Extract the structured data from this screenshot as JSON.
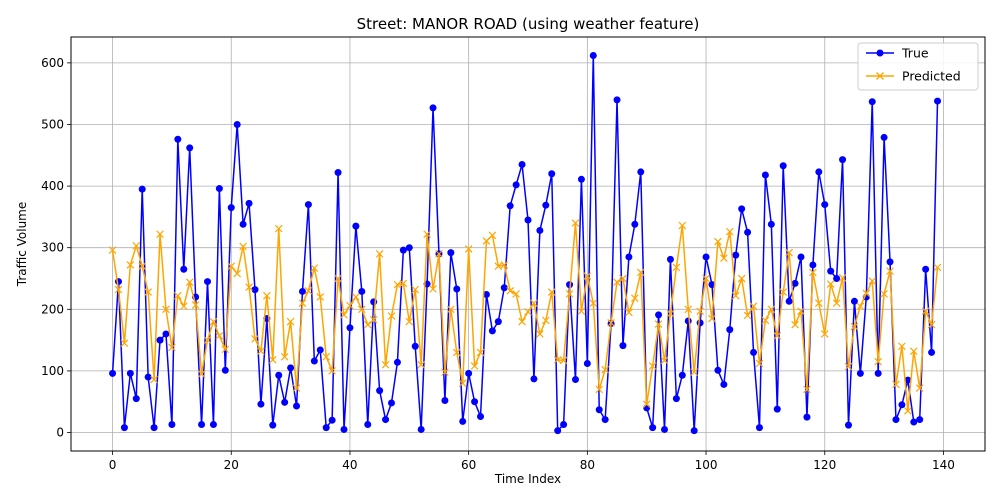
{
  "chart_data": {
    "type": "line",
    "title": "Street: MANOR ROAD (using weather feature)",
    "xlabel": "Time Index",
    "ylabel": "Traffic Volume",
    "xlim": [
      -7,
      147
    ],
    "ylim": [
      -30,
      642
    ],
    "xticks": [
      0,
      20,
      40,
      60,
      80,
      100,
      120,
      140
    ],
    "yticks": [
      0,
      100,
      200,
      300,
      400,
      500,
      600
    ],
    "grid": true,
    "legend_position": "upper right",
    "series": [
      {
        "name": "True",
        "color": "#0000ff",
        "marker": "circle",
        "values": [
          96,
          245,
          8,
          96,
          55,
          395,
          90,
          8,
          150,
          160,
          13,
          476,
          265,
          462,
          220,
          13,
          245,
          13,
          396,
          101,
          365,
          500,
          338,
          372,
          232,
          46,
          185,
          12,
          93,
          49,
          105,
          43,
          229,
          370,
          116,
          134,
          8,
          20,
          422,
          5,
          170,
          335,
          229,
          13,
          212,
          68,
          21,
          48,
          114,
          296,
          300,
          140,
          5,
          241,
          527,
          290,
          52,
          292,
          233,
          18,
          96,
          50,
          26,
          224,
          165,
          180,
          235,
          368,
          402,
          435,
          345,
          87,
          328,
          369,
          420,
          3,
          13,
          240,
          86,
          411,
          112,
          612,
          37,
          21,
          177,
          540,
          141,
          285,
          338,
          423,
          40,
          8,
          191,
          5,
          281,
          55,
          93,
          181,
          3,
          178,
          285,
          240,
          101,
          78,
          167,
          288,
          363,
          325,
          130,
          8,
          418,
          338,
          38,
          433,
          213,
          242,
          285,
          25,
          272,
          423,
          370,
          262,
          250,
          443,
          12,
          213,
          96,
          220,
          537,
          96,
          479,
          277,
          21,
          45,
          85,
          17,
          21,
          265,
          130,
          538
        ]
      },
      {
        "name": "Predicted",
        "color": "#ffa500",
        "marker": "x",
        "values": [
          296,
          232,
          145,
          272,
          303,
          270,
          228,
          86,
          322,
          200,
          138,
          222,
          205,
          244,
          207,
          95,
          150,
          180,
          157,
          135,
          270,
          258,
          302,
          236,
          152,
          132,
          222,
          118,
          331,
          123,
          180,
          72,
          210,
          230,
          267,
          220,
          123,
          100,
          250,
          191,
          206,
          220,
          200,
          175,
          183,
          290,
          110,
          189,
          240,
          242,
          180,
          232,
          110,
          322,
          233,
          290,
          98,
          200,
          130,
          80,
          298,
          108,
          130,
          311,
          320,
          270,
          272,
          230,
          225,
          180,
          196,
          210,
          160,
          182,
          228,
          118,
          117,
          225,
          340,
          197,
          254,
          210,
          70,
          102,
          178,
          244,
          250,
          195,
          218,
          260,
          46,
          108,
          176,
          117,
          193,
          268,
          336,
          200,
          98,
          197,
          250,
          185,
          310,
          283,
          326,
          222,
          250,
          190,
          205,
          112,
          182,
          200,
          157,
          228,
          292,
          175,
          197,
          70,
          260,
          210,
          160,
          241,
          210,
          251,
          107,
          172,
          205,
          226,
          246,
          115,
          225,
          262,
          78,
          140,
          35,
          132,
          72,
          197,
          175,
          268
        ]
      }
    ]
  }
}
